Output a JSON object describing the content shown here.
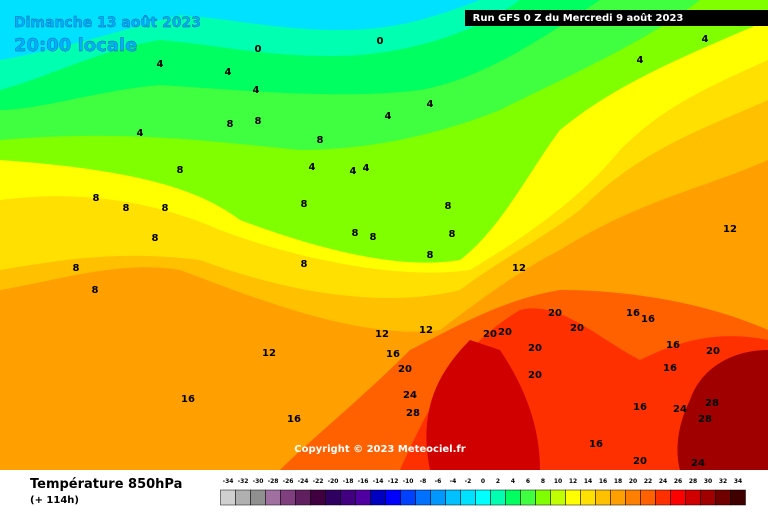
{
  "header": {
    "title": "Dimanche 13 août 2023",
    "subtitle": "20:00 locale",
    "run": "Run GFS 0 Z du Mercredi 9 août 2023"
  },
  "map": {
    "labels": [
      0,
      0,
      4,
      4,
      4,
      4,
      4,
      4,
      4,
      4,
      4,
      4,
      4,
      8,
      8,
      8,
      8,
      8,
      8,
      8,
      8,
      8,
      8,
      8,
      8,
      8,
      8,
      8,
      8,
      8,
      12,
      12,
      12,
      12,
      12,
      16,
      16,
      16,
      16,
      16,
      16,
      16,
      16,
      16,
      20,
      20,
      20,
      20,
      20,
      20,
      20,
      20,
      20,
      24,
      24,
      24,
      28,
      28,
      28
    ],
    "copyright": "Copyright © 2023 Meteociel.fr"
  },
  "footer": {
    "variable": "Température 850hPa",
    "lead": "(+ 114h)"
  },
  "legend": {
    "ticks": [
      -34,
      -32,
      -30,
      -28,
      -26,
      -24,
      -22,
      -20,
      -18,
      -16,
      -14,
      -12,
      -10,
      -8,
      -6,
      -4,
      -2,
      0,
      2,
      4,
      6,
      8,
      10,
      12,
      14,
      16,
      18,
      20,
      22,
      24,
      26,
      28,
      30,
      32,
      34
    ],
    "colors": [
      "#d0d0d0",
      "#b0b0b0",
      "#909090",
      "#a070a0",
      "#804080",
      "#602060",
      "#400040",
      "#300060",
      "#400080",
      "#5000a0",
      "#0000c0",
      "#0000ff",
      "#0040ff",
      "#0070ff",
      "#0098ff",
      "#00c0ff",
      "#00e0ff",
      "#00ffff",
      "#00ffb0",
      "#00ff60",
      "#40ff40",
      "#80ff00",
      "#c0ff00",
      "#ffff00",
      "#ffe000",
      "#ffc000",
      "#ffa000",
      "#ff8000",
      "#ff6000",
      "#ff3000",
      "#ff0000",
      "#d00000",
      "#a00000",
      "#700000",
      "#400000"
    ]
  }
}
